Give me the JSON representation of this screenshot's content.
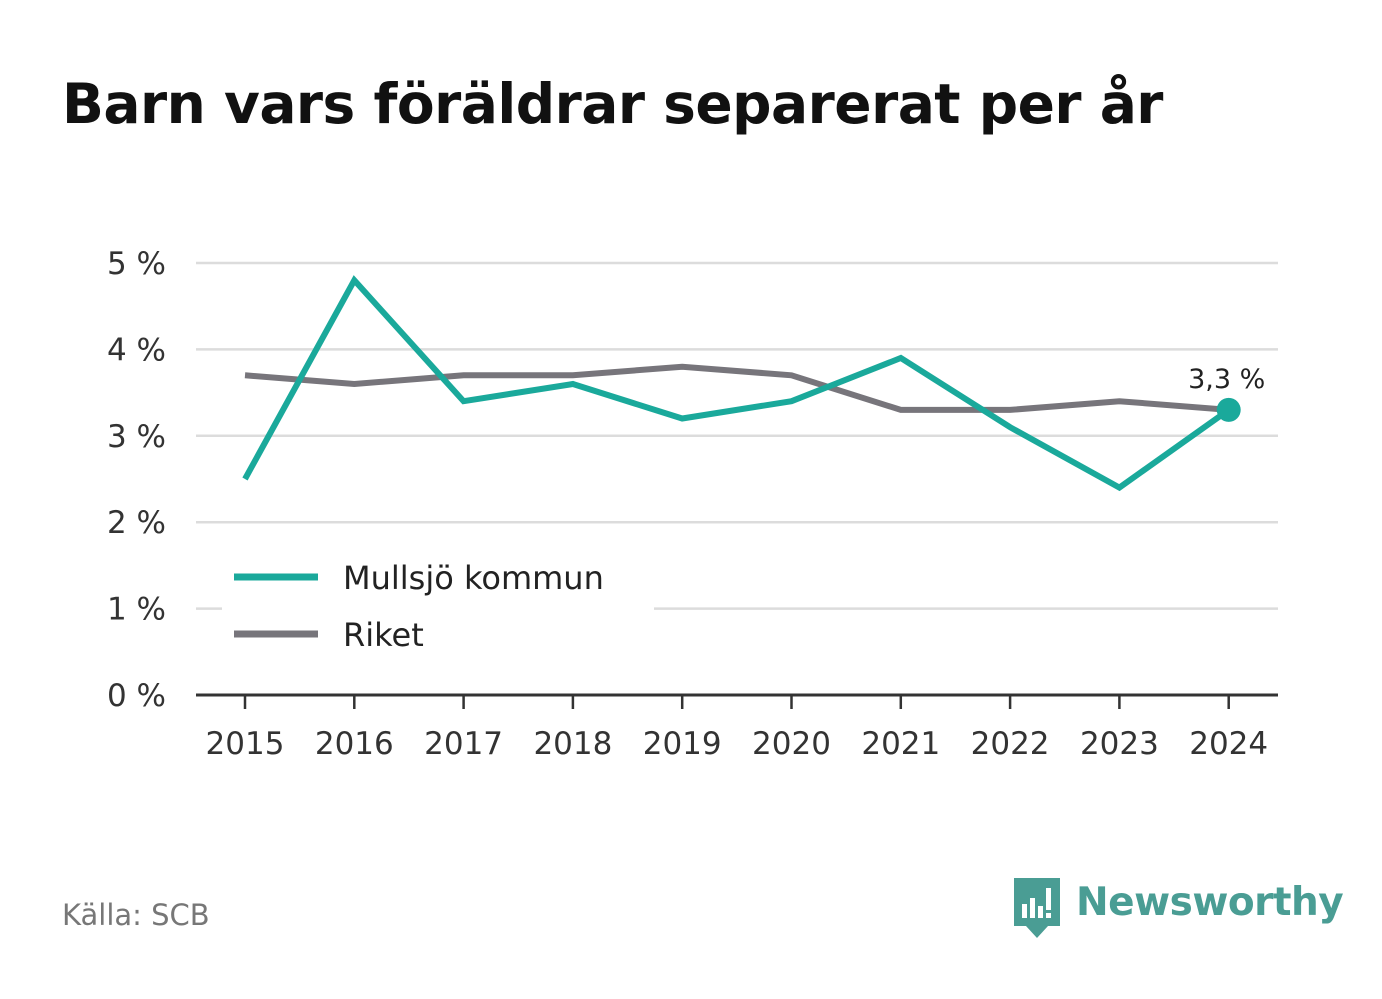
{
  "title": "Barn vars föräldrar separerat per år",
  "source": "Källa: SCB",
  "brand": {
    "name": "Newsworthy",
    "icon": "newsworthy-logo-icon",
    "color": "#4a9d94"
  },
  "chart_data": {
    "type": "line",
    "title": "Barn vars föräldrar separerat per år",
    "xlabel": "",
    "ylabel": "",
    "categories": [
      "2015",
      "2016",
      "2017",
      "2018",
      "2019",
      "2020",
      "2021",
      "2022",
      "2023",
      "2024"
    ],
    "ylim": [
      0,
      5
    ],
    "yticks": [
      0,
      1,
      2,
      3,
      4,
      5
    ],
    "ytick_labels": [
      "0 %",
      "1 %",
      "2 %",
      "3 %",
      "4 %",
      "5 %"
    ],
    "grid": true,
    "legend_position": "bottom-left",
    "series": [
      {
        "name": "Mullsjö kommun",
        "color": "#1aa99b",
        "values": [
          2.5,
          4.8,
          3.4,
          3.6,
          3.2,
          3.4,
          3.9,
          3.1,
          2.4,
          3.3
        ]
      },
      {
        "name": "Riket",
        "color": "#77757b",
        "values": [
          3.7,
          3.6,
          3.7,
          3.7,
          3.8,
          3.7,
          3.3,
          3.3,
          3.4,
          3.3
        ]
      }
    ],
    "end_label": "3,3 %"
  }
}
